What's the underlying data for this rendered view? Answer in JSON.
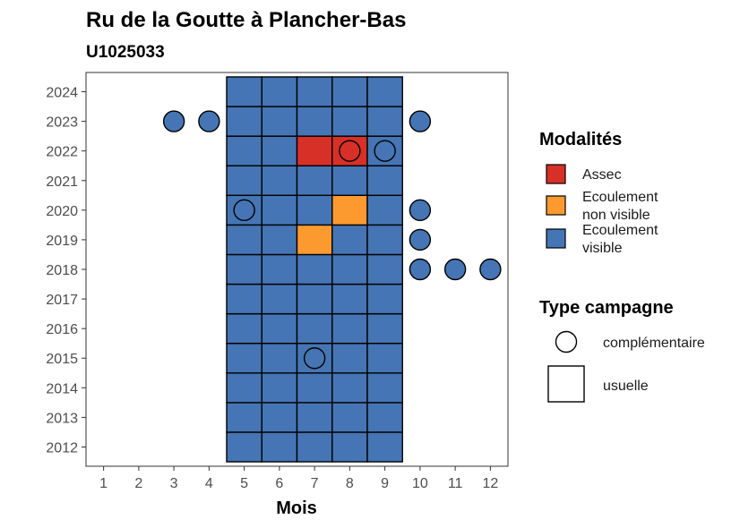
{
  "chart_data": {
    "type": "heatmap",
    "title": "Ru de la Goutte à Plancher-Bas",
    "subtitle": "U1025033",
    "xlabel": "Mois",
    "ylabel": "",
    "x_ticks": [
      1,
      2,
      3,
      4,
      5,
      6,
      7,
      8,
      9,
      10,
      11,
      12
    ],
    "y_ticks": [
      2012,
      2013,
      2014,
      2015,
      2016,
      2017,
      2018,
      2019,
      2020,
      2021,
      2022,
      2023,
      2024
    ],
    "xlim": [
      0.5,
      12.5
    ],
    "ylim": [
      2011.35,
      2024.65
    ],
    "grid": false,
    "legend_position": "right",
    "modalites": {
      "title": "Modalités",
      "entries": [
        {
          "key": "assec",
          "lines": [
            "Assec"
          ],
          "color": "#d73027"
        },
        {
          "key": "ecoulement_non_visible",
          "lines": [
            "Ecoulement",
            "non visible"
          ],
          "color": "#fd9a2f"
        },
        {
          "key": "ecoulement_visible",
          "lines": [
            "Ecoulement",
            "visible"
          ],
          "color": "#4575b4"
        }
      ]
    },
    "type_campagne": {
      "title": "Type campagne",
      "entries": [
        {
          "key": "complementaire",
          "label": "complémentaire",
          "shape": "circle"
        },
        {
          "key": "usuelle",
          "label": "usuelle",
          "shape": "square"
        }
      ]
    },
    "usuelle_tiles": {
      "months": [
        5,
        6,
        7,
        8,
        9
      ],
      "years": [
        2012,
        2013,
        2014,
        2015,
        2016,
        2017,
        2018,
        2019,
        2020,
        2021,
        2022,
        2023,
        2024
      ],
      "default_modalite": "ecoulement_visible",
      "exceptions": [
        {
          "year": 2022,
          "month": 7,
          "modalite": "assec"
        },
        {
          "year": 2022,
          "month": 8,
          "modalite": "assec"
        },
        {
          "year": 2020,
          "month": 8,
          "modalite": "ecoulement_non_visible"
        },
        {
          "year": 2019,
          "month": 7,
          "modalite": "ecoulement_non_visible"
        }
      ]
    },
    "complementaire_points": [
      {
        "year": 2023,
        "month": 3,
        "modalite": "ecoulement_visible"
      },
      {
        "year": 2023,
        "month": 4,
        "modalite": "ecoulement_visible"
      },
      {
        "year": 2023,
        "month": 10,
        "modalite": "ecoulement_visible"
      },
      {
        "year": 2022,
        "month": 8,
        "modalite": "assec"
      },
      {
        "year": 2022,
        "month": 9,
        "modalite": "ecoulement_visible"
      },
      {
        "year": 2020,
        "month": 5,
        "modalite": "ecoulement_visible"
      },
      {
        "year": 2020,
        "month": 10,
        "modalite": "ecoulement_visible"
      },
      {
        "year": 2019,
        "month": 10,
        "modalite": "ecoulement_visible"
      },
      {
        "year": 2018,
        "month": 10,
        "modalite": "ecoulement_visible"
      },
      {
        "year": 2018,
        "month": 11,
        "modalite": "ecoulement_visible"
      },
      {
        "year": 2018,
        "month": 12,
        "modalite": "ecoulement_visible"
      },
      {
        "year": 2015,
        "month": 7,
        "modalite": "ecoulement_visible"
      }
    ]
  }
}
